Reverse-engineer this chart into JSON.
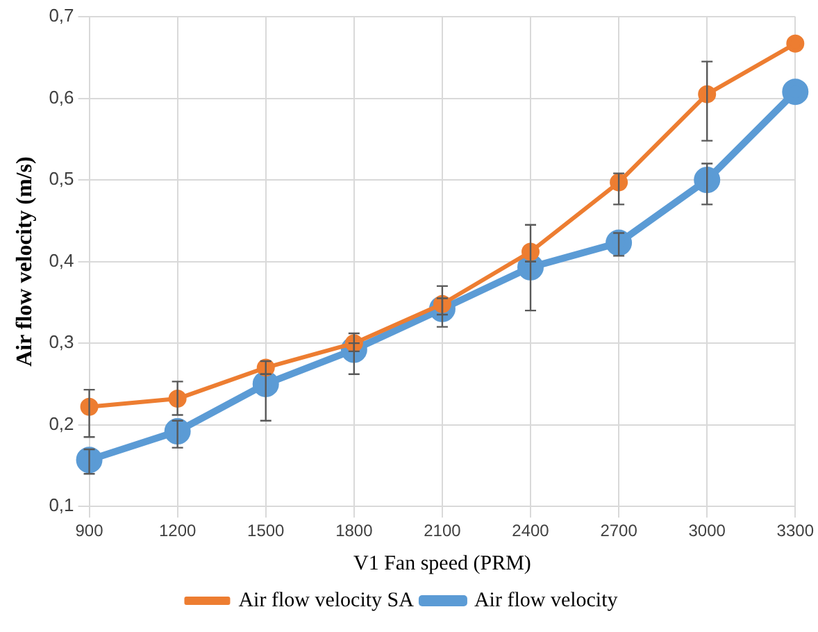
{
  "chart_data": {
    "type": "line",
    "xlabel": "V1 Fan speed (PRM)",
    "ylabel": "Air flow velocity (m/s)",
    "categories": [
      "900",
      "1200",
      "1500",
      "1800",
      "2100",
      "2400",
      "2700",
      "3000",
      "3300"
    ],
    "series": [
      {
        "name": "Air flow velocity SA",
        "color": "#ed7d31",
        "values": [
          0.222,
          0.232,
          0.27,
          0.3,
          0.348,
          0.412,
          0.497,
          0.605,
          0.667
        ],
        "errors": [
          [
            0.185,
            0.243
          ],
          [
            0.212,
            0.253
          ],
          [
            0.262,
            0.278
          ],
          [
            0.29,
            0.312
          ],
          [
            0.335,
            0.37
          ],
          [
            0.4,
            0.445
          ],
          [
            0.47,
            0.508
          ],
          [
            0.548,
            0.645
          ],
          null
        ]
      },
      {
        "name": "Air flow velocity",
        "color": "#5b9bd5",
        "values": [
          0.157,
          0.192,
          0.25,
          0.292,
          0.342,
          0.393,
          0.423,
          0.5,
          0.608
        ],
        "errors": [
          [
            0.14,
            0.17
          ],
          [
            0.172,
            0.205
          ],
          [
            0.205,
            0.262
          ],
          [
            0.262,
            0.3
          ],
          [
            0.32,
            0.355
          ],
          [
            0.34,
            0.4
          ],
          [
            0.407,
            0.435
          ],
          [
            0.47,
            0.52
          ],
          null
        ]
      }
    ],
    "ylim": [
      0.1,
      0.7
    ],
    "yticks": [
      {
        "value": 0.1,
        "label": "0,1"
      },
      {
        "value": 0.2,
        "label": "0,2"
      },
      {
        "value": 0.3,
        "label": "0,3"
      },
      {
        "value": 0.4,
        "label": "0,4"
      },
      {
        "value": 0.5,
        "label": "0,5"
      },
      {
        "value": 0.6,
        "label": "0,6"
      },
      {
        "value": 0.7,
        "label": "0,7"
      }
    ],
    "grid": true,
    "legend": "bottom",
    "marker": "circle",
    "line_style": "solid"
  }
}
